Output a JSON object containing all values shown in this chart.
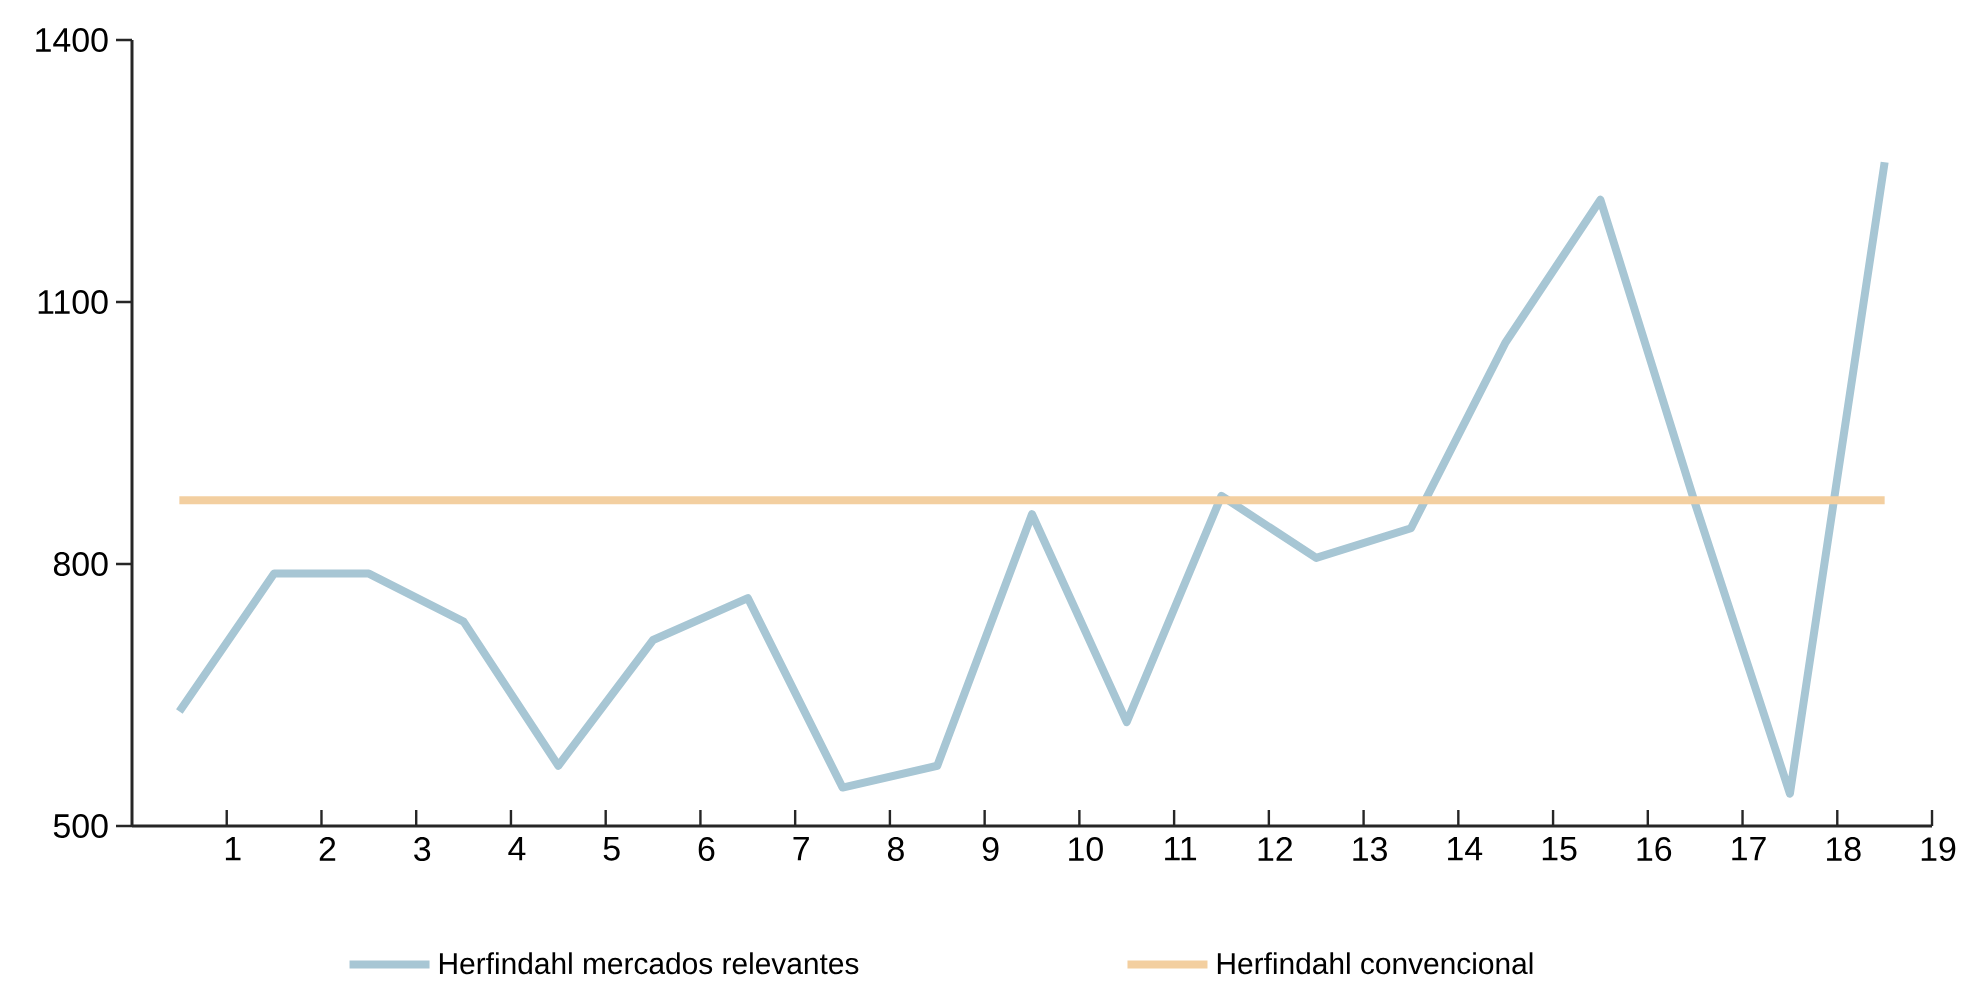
{
  "chart_data": {
    "type": "line",
    "x": [
      0.5,
      1.5,
      2.5,
      3.5,
      4.5,
      5.5,
      6.5,
      7.5,
      8.5,
      9.5,
      10.5,
      11.5,
      12.5,
      13.5,
      14.5,
      15.5,
      16.5,
      17.5,
      18.5
    ],
    "series": [
      {
        "name": "Herfindahl mercados relevantes",
        "color": "#a7c6d4",
        "values": [
          631,
          789,
          789,
          734,
          569,
          713,
          761,
          544,
          569,
          857,
          619,
          878,
          807,
          841,
          1054,
          1217,
          869,
          537,
          1260
        ]
      },
      {
        "name": "Herfindahl convencional",
        "color": "#f3cfa0",
        "values": [
          873,
          873,
          873,
          873,
          873,
          873,
          873,
          873,
          873,
          873,
          873,
          873,
          873,
          873,
          873,
          873,
          873,
          873,
          873
        ]
      }
    ],
    "xlim": [
      0,
      19
    ],
    "xticks": [
      1,
      2,
      3,
      4,
      5,
      6,
      7,
      8,
      9,
      10,
      11,
      12,
      13,
      14,
      15,
      16,
      17,
      18,
      19
    ],
    "ylim": [
      500,
      1400
    ],
    "yticks": [
      500,
      800,
      1100,
      1400
    ],
    "grid": false,
    "legend": "bottom",
    "line_style": "solid",
    "marker": "none"
  }
}
